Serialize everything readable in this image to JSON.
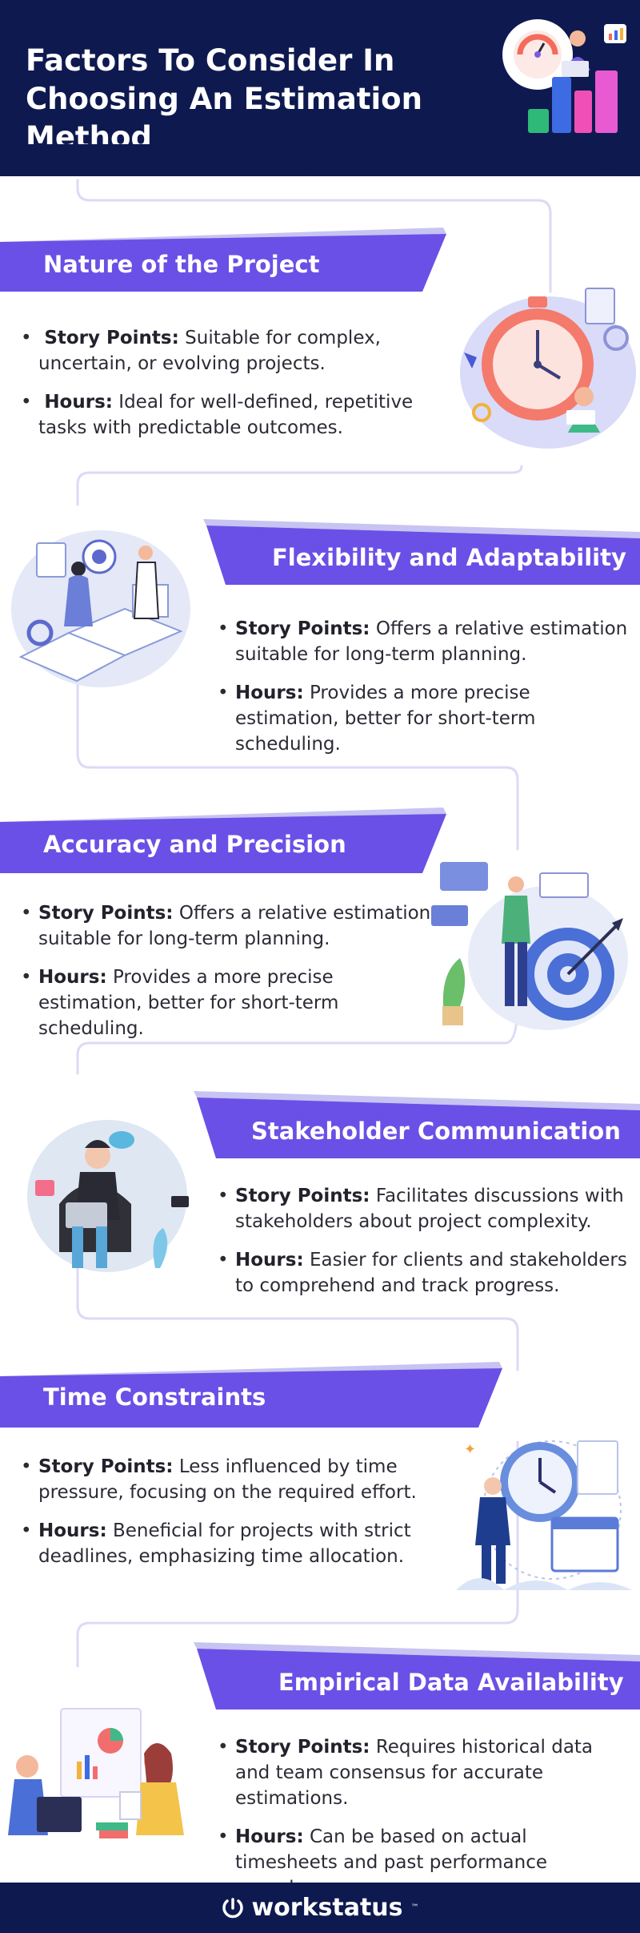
{
  "header": {
    "title": "Factors To Consider In Choosing An Estimation Method"
  },
  "sections": [
    {
      "title": "Nature of the Project",
      "items": [
        {
          "label": "Story Points:",
          "text": "Suitable for complex, uncertain, or evolving projects."
        },
        {
          "label": "Hours:",
          "text": "Ideal for well-defined, repetitive tasks with predictable outcomes."
        }
      ]
    },
    {
      "title": "Flexibility and Adaptability",
      "items": [
        {
          "label": "Story Points:",
          "text": "Offers a relative estimation suitable for long-term planning."
        },
        {
          "label": "Hours:",
          "text": "Provides a more precise estimation, better for short-term scheduling."
        }
      ]
    },
    {
      "title": "Accuracy and Precision",
      "items": [
        {
          "label": "Story Points:",
          "text": "Offers a relative estimation suitable for long-term planning."
        },
        {
          "label": "Hours:",
          "text": "Provides a more precise estimation, better for short-term scheduling."
        }
      ]
    },
    {
      "title": "Stakeholder Communication",
      "items": [
        {
          "label": "Story Points:",
          "text": "Facilitates discussions with stakeholders about project complexity."
        },
        {
          "label": "Hours:",
          "text": "Easier for clients and stakeholders to comprehend and track progress."
        }
      ]
    },
    {
      "title": "Time Constraints",
      "items": [
        {
          "label": "Story Points:",
          "text": "Less influenced by time pressure, focusing on the required effort."
        },
        {
          "label": "Hours:",
          "text": "Beneficial for projects with strict deadlines, emphasizing time allocation."
        }
      ]
    },
    {
      "title": "Empirical Data Availability",
      "items": [
        {
          "label": "Story Points:",
          "text": "Requires historical data and team consensus for accurate estimations."
        },
        {
          "label": "Hours:",
          "text": "Can be based on actual timesheets and past performance records."
        }
      ]
    }
  ],
  "footer": {
    "brand": "workstatus",
    "trademark": "™"
  },
  "colors": {
    "navy": "#0e1a4f",
    "purple": "#6a50e6",
    "lavender": "#c7c3f2",
    "connector": "#dcdaf6"
  }
}
